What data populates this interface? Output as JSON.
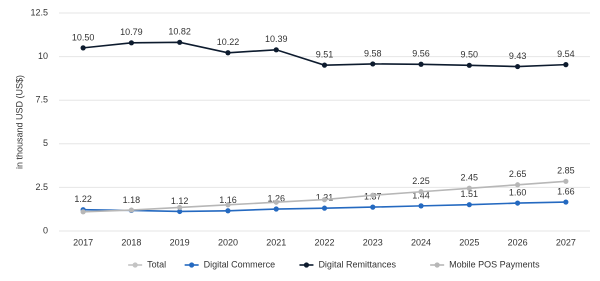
{
  "chart_data": {
    "type": "line",
    "y_label": "in thousand USD (US$)",
    "categories": [
      "2017",
      "2018",
      "2019",
      "2020",
      "2021",
      "2022",
      "2023",
      "2024",
      "2025",
      "2026",
      "2027"
    ],
    "ylim": [
      0,
      12.5
    ],
    "yticks": [
      0,
      2.5,
      5,
      7.5,
      10,
      12.5
    ],
    "grid": true,
    "series": [
      {
        "name": "Total",
        "color": "#c4c4c4",
        "hidden": true,
        "values": [
          null,
          null,
          null,
          null,
          null,
          null,
          null,
          null,
          null,
          null,
          null
        ]
      },
      {
        "name": "Digital Commerce",
        "color": "#2469c0",
        "values": [
          1.22,
          1.18,
          1.12,
          1.16,
          1.26,
          1.31,
          1.37,
          1.44,
          1.51,
          1.6,
          1.66
        ],
        "value_labels": [
          "1.22",
          "1.18",
          "1.12",
          "1.16",
          "1.26",
          "1.31",
          "1.37",
          "1.44",
          "1.51",
          "1.60",
          "1.66"
        ]
      },
      {
        "name": "Digital Remittances",
        "color": "#0d1b2e",
        "values": [
          10.5,
          10.79,
          10.82,
          10.22,
          10.39,
          9.51,
          9.58,
          9.56,
          9.5,
          9.43,
          9.54
        ],
        "value_labels": [
          "10.50",
          "10.79",
          "10.82",
          "10.22",
          "10.39",
          "9.51",
          "9.58",
          "9.56",
          "9.50",
          "9.43",
          "9.54"
        ]
      },
      {
        "name": "Mobile POS Payments",
        "color": "#b7b7b7",
        "values": [
          1.1,
          1.2,
          1.35,
          1.5,
          1.65,
          1.8,
          2.05,
          2.25,
          2.45,
          2.65,
          2.85
        ],
        "value_labels": [
          null,
          null,
          null,
          null,
          null,
          null,
          null,
          "2.25",
          "2.45",
          "2.65",
          "2.85"
        ]
      }
    ],
    "legend_position": "bottom"
  }
}
